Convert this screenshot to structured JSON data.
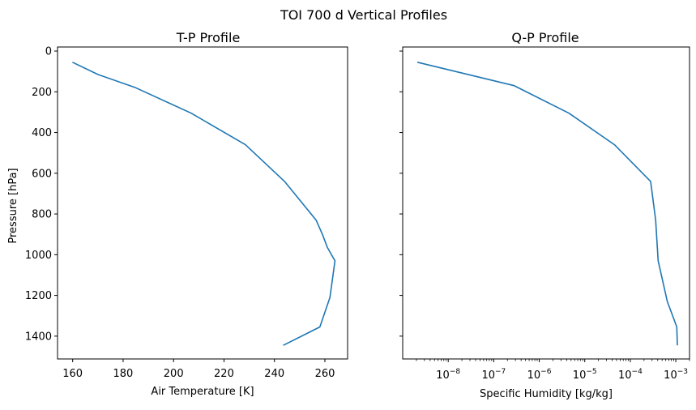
{
  "figure": {
    "suptitle": "TOI 700 d Vertical Profiles"
  },
  "chart_data": [
    {
      "type": "line",
      "title": "T-P Profile",
      "xlabel": "Air Temperature [K]",
      "ylabel": "Pressure [hPa]",
      "xscale": "linear",
      "yscale": "linear",
      "y_inverted": true,
      "xlim": [
        154,
        269
      ],
      "ylim": [
        1512,
        -20
      ],
      "xticks": [
        160,
        180,
        200,
        220,
        240,
        260
      ],
      "yticks": [
        0,
        200,
        400,
        600,
        800,
        1000,
        1200,
        1400
      ],
      "grid": false,
      "line_color": "#1f77b4",
      "series": [
        {
          "x": [
            159.9,
            170.0,
            185.0,
            207.0,
            228.5,
            244.0,
            256.5,
            259.0,
            261.0,
            264.0,
            263.0,
            262.0,
            258.0,
            243.5
          ],
          "y": [
            55,
            115,
            180,
            305,
            460,
            640,
            830,
            900,
            965,
            1030,
            1120,
            1210,
            1355,
            1445
          ]
        }
      ]
    },
    {
      "type": "line",
      "title": "Q-P Profile",
      "xlabel": "Specific Humidity [kg/kg]",
      "ylabel": "",
      "xscale": "log",
      "yscale": "linear",
      "y_inverted": true,
      "xlim": [
        1e-09,
        0.002
      ],
      "ylim": [
        1512,
        -20
      ],
      "xticks": [
        1e-08,
        1e-07,
        1e-06,
        1e-05,
        0.0001,
        0.001
      ],
      "xtick_labels": [
        {
          "base": "10",
          "exp": "−8"
        },
        {
          "base": "10",
          "exp": "−7"
        },
        {
          "base": "10",
          "exp": "−6"
        },
        {
          "base": "10",
          "exp": "−5"
        },
        {
          "base": "10",
          "exp": "−4"
        },
        {
          "base": "10",
          "exp": "−3"
        }
      ],
      "grid": false,
      "line_color": "#1f77b4",
      "series": [
        {
          "x": [
            2.1e-09,
            2.8e-07,
            4.5e-06,
            4.5e-05,
            0.00028,
            0.00036,
            0.00041,
            0.00065,
            0.00105,
            0.00108
          ],
          "y": [
            55,
            170,
            305,
            460,
            640,
            830,
            1030,
            1230,
            1355,
            1445
          ]
        }
      ]
    }
  ]
}
